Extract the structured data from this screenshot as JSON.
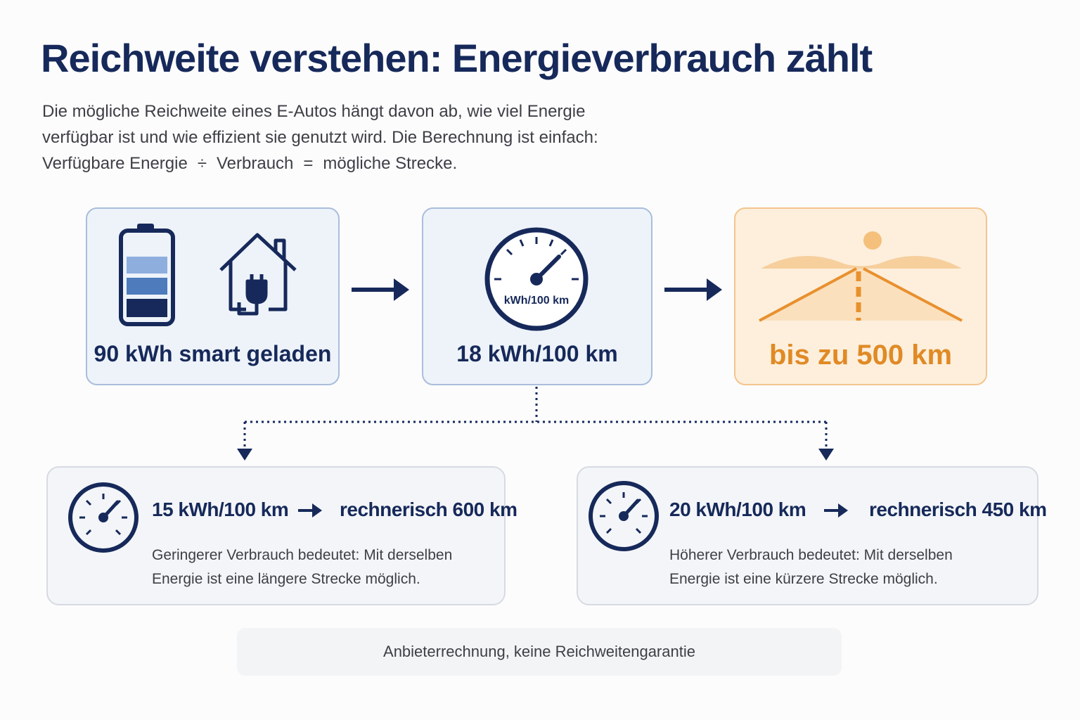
{
  "header": {
    "title": "Reichweite verstehen: Energieverbrauch zählt",
    "intro": [
      "Die mögliche Reichweite eines E-Autos hängt davon ab, wie viel Energie",
      "verfügbar ist und wie effizient sie genutzt wird. Die Berechnung ist einfach:"
    ],
    "formula": [
      "Verfügbare Energie",
      "÷",
      "Verbrauch",
      "=",
      "mögliche Strecke."
    ]
  },
  "flow": [
    {
      "label": "90 kWh smart geladen"
    },
    {
      "gauge_label": "kWh/100 km",
      "label": "18 kWh/100 km"
    },
    {
      "label": "bis zu 500 km"
    }
  ],
  "scenarios": [
    {
      "consumption": "15 kWh/100 km",
      "result": "rechnerisch 600 km",
      "text": [
        "Geringerer Verbrauch bedeutet: Mit derselben",
        "Energie ist eine längere Strecke möglich."
      ]
    },
    {
      "consumption": "20 kWh/100 km",
      "result": "rechnerisch 450 km",
      "text": [
        "Höherer Verbrauch bedeutet: Mit derselben",
        "Energie ist eine kürzere Strecke möglich."
      ]
    }
  ],
  "footer": {
    "note": "Anbieterrechnung, keine Reichweitengarantie"
  }
}
